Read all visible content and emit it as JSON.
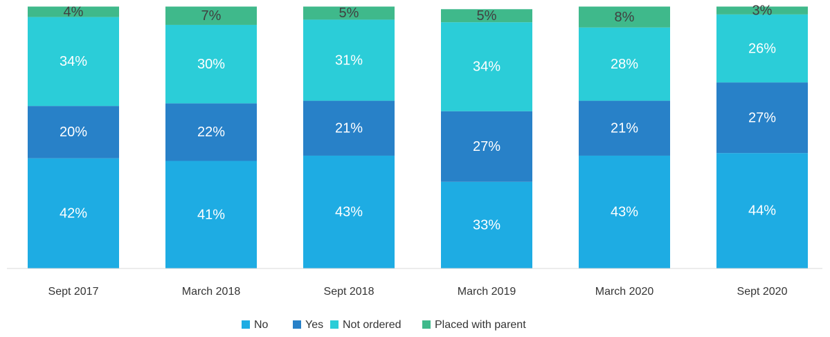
{
  "chart_data": {
    "type": "stacked_bar",
    "categories": [
      "Sept 2017",
      "March 2018",
      "Sept 2018",
      "March 2019",
      "March 2020",
      "Sept 2020"
    ],
    "series": [
      {
        "name": "No",
        "color": "#1eacE3",
        "values": [
          42,
          41,
          43,
          33,
          43,
          44
        ],
        "value_labels": [
          "42%",
          "41%",
          "43%",
          "33%",
          "43%",
          "44%"
        ]
      },
      {
        "name": "Yes",
        "color": "#2881c8",
        "values": [
          20,
          22,
          21,
          27,
          21,
          27
        ],
        "value_labels": [
          "20%",
          "22%",
          "21%",
          "27%",
          "21%",
          "27%"
        ]
      },
      {
        "name": "Not ordered",
        "color": "#2bcdd8",
        "values": [
          34,
          30,
          31,
          34,
          28,
          26
        ],
        "value_labels": [
          "34%",
          "30%",
          "31%",
          "34%",
          "28%",
          "26%"
        ]
      },
      {
        "name": "Placed with parent",
        "color": "#3fb98b",
        "values": [
          4,
          7,
          5,
          5,
          8,
          3
        ],
        "value_labels": [
          "4%",
          "7%",
          "5%",
          "5%",
          "8%",
          "3%"
        ]
      }
    ],
    "legend": "bottom"
  }
}
